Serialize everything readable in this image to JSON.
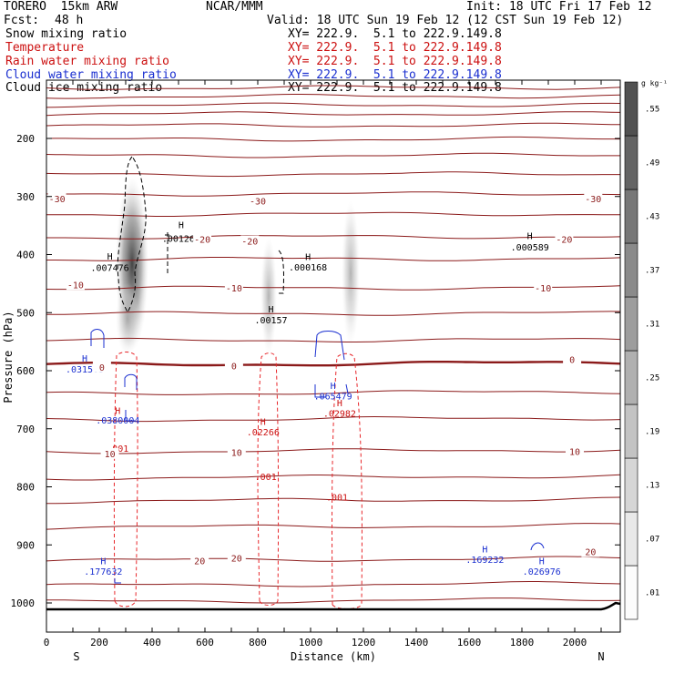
{
  "header": {
    "model": "TORERO  15km ARW",
    "org": "NCAR/MMM",
    "init": "Init: 18 UTC Fri 17 Feb 12",
    "fcst_label": "Fcst:",
    "fcst_value": "48 h",
    "valid": "Valid: 18 UTC Sun 19 Feb 12 (12 CST Sun 19 Feb 12)"
  },
  "colors": {
    "temperature": "#8b1a1a",
    "rain": "#e8262a",
    "cloud_water": "#1a2fd0",
    "snow": "#000000",
    "ice": "#000000"
  },
  "fields": [
    {
      "name": "Snow mixing ratio",
      "color": "#000000",
      "xy": "XY= 222.9.  5.1 to 222.9.149.8"
    },
    {
      "name": "Temperature",
      "color": "#cc1010",
      "xy": "XY= 222.9.  5.1 to 222.9.149.8"
    },
    {
      "name": "Rain water mixing ratio",
      "color": "#cc1010",
      "xy": "XY= 222.9.  5.1 to 222.9.149.8"
    },
    {
      "name": "Cloud water mixing ratio",
      "color": "#1a2fd0",
      "xy": "XY= 222.9.  5.1 to 222.9.149.8"
    },
    {
      "name": "Cloud ice mixing ratio",
      "color": "#000000",
      "xy": "XY= 222.9.  5.1 to 222.9.149.8"
    }
  ],
  "chart_data": {
    "type": "cross-section",
    "xlabel": "Distance (km)",
    "ylabel": "Pressure (hPa)",
    "xlim": [
      0,
      2180
    ],
    "ylim": [
      1050,
      100
    ],
    "x_ticks": [
      0,
      100,
      200,
      300,
      400,
      500,
      600,
      700,
      800,
      900,
      1000,
      1100,
      1200,
      1300,
      1400,
      1500,
      1600,
      1700,
      1800,
      1900,
      2000,
      2100
    ],
    "x_tick_labels": [
      {
        "x": 0,
        "label": "0"
      },
      {
        "x": 200,
        "label": "200"
      },
      {
        "x": 400,
        "label": "400"
      },
      {
        "x": 600,
        "label": "600"
      },
      {
        "x": 800,
        "label": "800"
      },
      {
        "x": 1000,
        "label": "1000"
      },
      {
        "x": 1200,
        "label": "1200"
      },
      {
        "x": 1400,
        "label": "1400"
      },
      {
        "x": 1600,
        "label": "1600"
      },
      {
        "x": 1800,
        "label": "1800"
      },
      {
        "x": 2000,
        "label": "2000"
      }
    ],
    "y_ticks": [
      200,
      300,
      400,
      500,
      600,
      700,
      800,
      900,
      1000
    ],
    "endpoints": {
      "left": "S",
      "right": "N"
    },
    "colorbar": {
      "unit": "g kg⁻¹",
      "labels": [
        ".01",
        ".07",
        ".13",
        ".19",
        ".25",
        ".31",
        ".37",
        ".43",
        ".49",
        ".55"
      ]
    },
    "temperature_isotherms": [
      {
        "p": 113,
        "label": ""
      },
      {
        "p": 128,
        "label": ""
      },
      {
        "p": 143,
        "label": ""
      },
      {
        "p": 158,
        "label": ""
      },
      {
        "p": 178,
        "label": ""
      },
      {
        "p": 202,
        "label": ""
      },
      {
        "p": 230,
        "label": ""
      },
      {
        "p": 262,
        "label": ""
      },
      {
        "p": 296,
        "label": ""
      },
      {
        "p": 331,
        "label": "-30"
      },
      {
        "p": 370,
        "label": "-20"
      },
      {
        "p": 408,
        "label": ""
      },
      {
        "p": 458,
        "label": "-10"
      },
      {
        "p": 502,
        "label": ""
      },
      {
        "p": 548,
        "label": ""
      },
      {
        "p": 590,
        "label": "0",
        "bold": true
      },
      {
        "p": 640,
        "label": ""
      },
      {
        "p": 685,
        "label": ""
      },
      {
        "p": 740,
        "label": "10"
      },
      {
        "p": 785,
        "label": ""
      },
      {
        "p": 825,
        "label": ""
      },
      {
        "p": 870,
        "label": ""
      },
      {
        "p": 927,
        "label": "20"
      },
      {
        "p": 970,
        "label": ""
      },
      {
        "p": 998,
        "label": ""
      }
    ],
    "isotherm_labels": [
      {
        "x": 40,
        "p": 305,
        "text": "-30"
      },
      {
        "x": 800,
        "p": 309,
        "text": "-30"
      },
      {
        "x": 2070,
        "p": 305,
        "text": "-30"
      },
      {
        "x": 590,
        "p": 375,
        "text": "-20"
      },
      {
        "x": 770,
        "p": 378,
        "text": "-20"
      },
      {
        "x": 1960,
        "p": 375,
        "text": "-20"
      },
      {
        "x": 110,
        "p": 453,
        "text": "-10"
      },
      {
        "x": 710,
        "p": 459,
        "text": "-10"
      },
      {
        "x": 1880,
        "p": 459,
        "text": "-10"
      },
      {
        "x": 210,
        "p": 595,
        "text": "0"
      },
      {
        "x": 710,
        "p": 593,
        "text": "0"
      },
      {
        "x": 1990,
        "p": 582,
        "text": "0"
      },
      {
        "x": 240,
        "p": 744,
        "text": "10"
      },
      {
        "x": 720,
        "p": 742,
        "text": "10"
      },
      {
        "x": 2000,
        "p": 740,
        "text": "10"
      },
      {
        "x": 580,
        "p": 929,
        "text": "20"
      },
      {
        "x": 720,
        "p": 924,
        "text": "20"
      },
      {
        "x": 2060,
        "p": 913,
        "text": "20"
      }
    ],
    "maxima_labels": [
      {
        "x": 510,
        "p": 348,
        "text": "H",
        "color": "#000000"
      },
      {
        "x": 510,
        "p": 372,
        "text": ".001267",
        "color": "#000000"
      },
      {
        "x": 240,
        "p": 402,
        "text": "H",
        "color": "#000000"
      },
      {
        "x": 240,
        "p": 422,
        "text": ".007476",
        "color": "#000000"
      },
      {
        "x": 990,
        "p": 403,
        "text": "H",
        "color": "#000000"
      },
      {
        "x": 990,
        "p": 421,
        "text": ".000168",
        "color": "#000000"
      },
      {
        "x": 1830,
        "p": 367,
        "text": "H",
        "color": "#000000"
      },
      {
        "x": 1830,
        "p": 387,
        "text": ".000589",
        "color": "#000000"
      },
      {
        "x": 850,
        "p": 493,
        "text": "H",
        "color": "#000000"
      },
      {
        "x": 850,
        "p": 512,
        "text": ".00157",
        "color": "#000000"
      },
      {
        "x": 145,
        "p": 578,
        "text": "H",
        "color": "#1a2fd0"
      },
      {
        "x": 145,
        "p": 597,
        "text": ".031503",
        "color": "#1a2fd0"
      },
      {
        "x": 1085,
        "p": 625,
        "text": "H",
        "color": "#1a2fd0"
      },
      {
        "x": 1085,
        "p": 643,
        "text": ".065479",
        "color": "#1a2fd0"
      },
      {
        "x": 270,
        "p": 668,
        "text": "H",
        "color": "#cc1010"
      },
      {
        "x": 270,
        "p": 685,
        "text": ".0380004",
        "color": "#1a2fd0"
      },
      {
        "x": 1110,
        "p": 655,
        "text": "H",
        "color": "#cc1010"
      },
      {
        "x": 1110,
        "p": 673,
        "text": ".02982",
        "color": "#cc1010"
      },
      {
        "x": 820,
        "p": 687,
        "text": "H",
        "color": "#cc1010"
      },
      {
        "x": 820,
        "p": 705,
        "text": ".02266",
        "color": "#cc1010"
      },
      {
        "x": 270,
        "p": 733,
        "text": ".001",
        "color": "#cc1010"
      },
      {
        "x": 830,
        "p": 782,
        "text": ".001",
        "color": "#cc1010"
      },
      {
        "x": 1100,
        "p": 817,
        "text": ".001",
        "color": "#cc1010"
      },
      {
        "x": 215,
        "p": 927,
        "text": "H",
        "color": "#1a2fd0"
      },
      {
        "x": 215,
        "p": 945,
        "text": ".177632",
        "color": "#1a2fd0"
      },
      {
        "x": 1660,
        "p": 907,
        "text": "H",
        "color": "#1a2fd0"
      },
      {
        "x": 1660,
        "p": 925,
        "text": ".169232",
        "color": "#1a2fd0"
      },
      {
        "x": 1875,
        "p": 927,
        "text": "H",
        "color": "#1a2fd0"
      },
      {
        "x": 1875,
        "p": 945,
        "text": ".026976",
        "color": "#1a2fd0"
      }
    ]
  }
}
